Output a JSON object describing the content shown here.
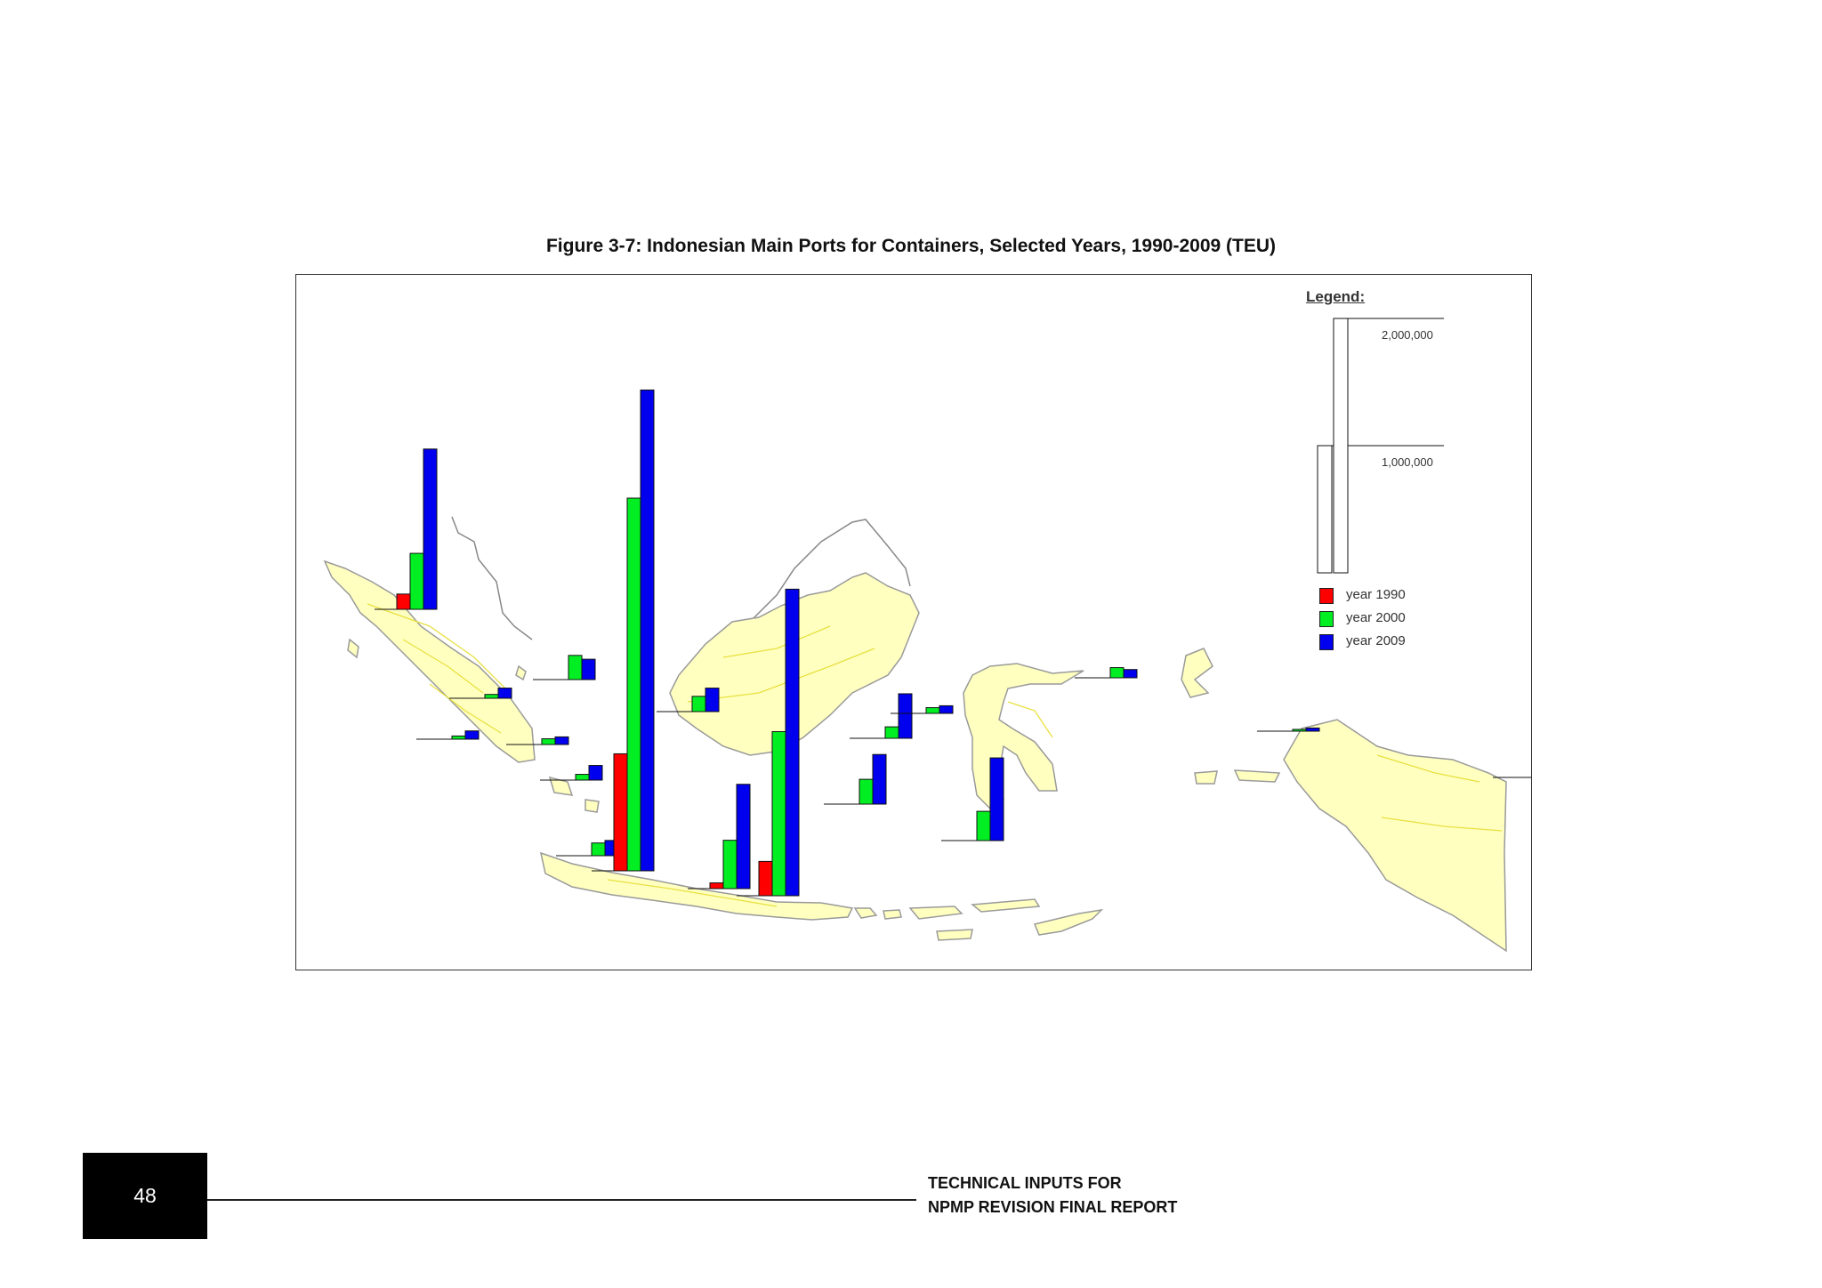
{
  "figure": {
    "title": "Figure 3-7: Indonesian Main Ports for Containers, Selected Years, 1990-2009 (TEU)"
  },
  "legend": {
    "title": "Legend:",
    "scale_labels": [
      "2,000,000",
      "1,000,000"
    ],
    "years": [
      {
        "label": "year 1990",
        "color": "#ff0000"
      },
      {
        "label": "year 2000",
        "color": "#00ee22"
      },
      {
        "label": "year 2009",
        "color": "#0000ee"
      }
    ]
  },
  "chart_data": {
    "type": "bar",
    "unit": "TEU",
    "series_names": [
      "year 1990",
      "year 2000",
      "year 2009"
    ],
    "colors": [
      "#ff0000",
      "#00ee22",
      "#0000ee"
    ],
    "ports": [
      {
        "values": [
          120000,
          440000,
          1260000
        ]
      },
      {
        "values": [
          0,
          190000,
          160000
        ]
      },
      {
        "values": [
          0,
          30000,
          80000
        ]
      },
      {
        "values": [
          0,
          25000,
          65000
        ]
      },
      {
        "values": [
          0,
          45000,
          60000
        ]
      },
      {
        "values": [
          0,
          45000,
          115000
        ]
      },
      {
        "values": [
          0,
          100000,
          120000
        ]
      },
      {
        "values": [
          920000,
          2930000,
          3780000
        ]
      },
      {
        "values": [
          0,
          120000,
          185000
        ]
      },
      {
        "values": [
          45000,
          380000,
          820000
        ]
      },
      {
        "values": [
          270000,
          1290000,
          2410000
        ]
      },
      {
        "values": [
          0,
          195000,
          390000
        ]
      },
      {
        "values": [
          0,
          90000,
          350000
        ]
      },
      {
        "values": [
          0,
          45000,
          60000
        ]
      },
      {
        "values": [
          0,
          230000,
          650000
        ]
      },
      {
        "values": [
          0,
          80000,
          65000
        ]
      },
      {
        "values": [
          0,
          5000,
          25000
        ]
      },
      {
        "values": [
          0,
          0,
          25000
        ]
      }
    ]
  },
  "footer": {
    "page_number": "48",
    "report_line1": "TECHNICAL INPUTS FOR",
    "report_line2": "NPMP REVISION FINAL REPORT"
  }
}
